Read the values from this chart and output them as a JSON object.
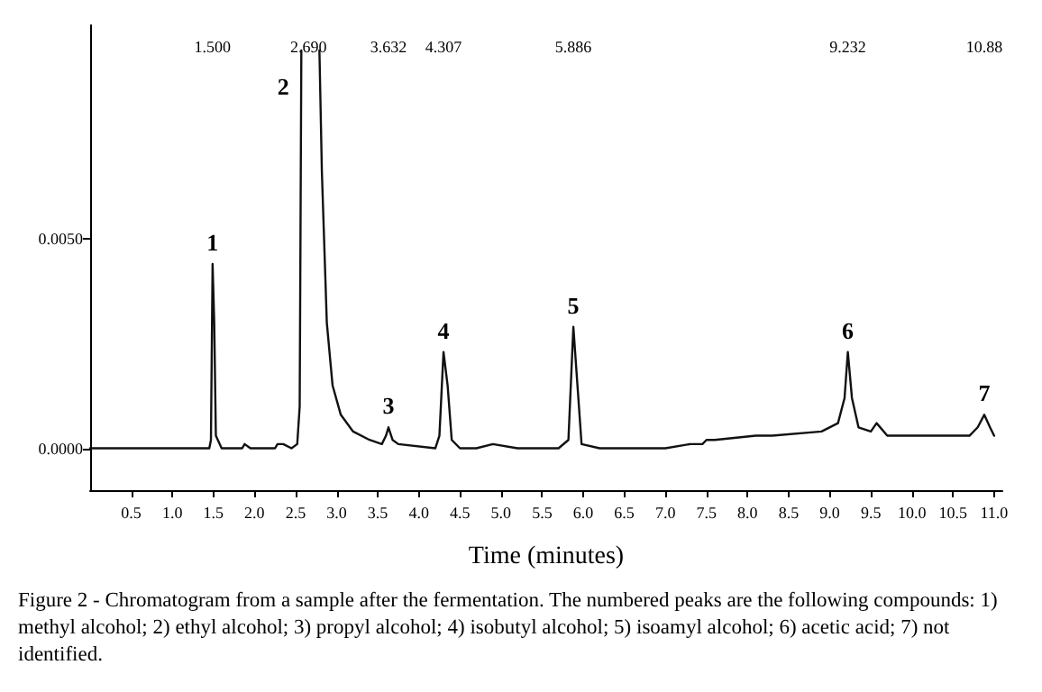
{
  "chart_data": {
    "type": "line",
    "xlabel": "Time (minutes)",
    "x": [
      0,
      0.5,
      1.0,
      1.45,
      1.47,
      1.49,
      1.51,
      1.53,
      1.6,
      1.85,
      1.88,
      1.95,
      2.25,
      2.28,
      2.35,
      2.45,
      2.52,
      2.55,
      2.57,
      2.58,
      2.75,
      2.79,
      2.82,
      2.88,
      2.95,
      3.05,
      3.2,
      3.4,
      3.55,
      3.6,
      3.63,
      3.68,
      3.75,
      4.2,
      4.25,
      4.3,
      4.35,
      4.4,
      4.5,
      4.7,
      4.9,
      5.2,
      5.7,
      5.82,
      5.88,
      5.93,
      5.98,
      6.2,
      7.0,
      7.3,
      7.45,
      7.5,
      7.6,
      8.1,
      8.3,
      8.9,
      9.1,
      9.18,
      9.22,
      9.27,
      9.35,
      9.5,
      9.57,
      9.7,
      10.7,
      10.8,
      10.88,
      10.95,
      11.0
    ],
    "series": [
      {
        "color": "#111111",
        "values": [
          0.0,
          0.0,
          0.0,
          0.0,
          0.0002,
          0.0044,
          0.003,
          0.0003,
          0.0,
          0.0,
          0.0001,
          0.0,
          0.0,
          0.0001,
          0.0001,
          0.0,
          0.0001,
          0.001,
          0.0095,
          null,
          null,
          0.0095,
          0.0066,
          0.003,
          0.0015,
          0.0008,
          0.0004,
          0.0002,
          0.0001,
          0.0003,
          0.0005,
          0.0002,
          0.0001,
          0.0,
          0.0003,
          0.0023,
          0.0015,
          0.0002,
          0.0,
          0.0,
          0.0001,
          0.0,
          0.0,
          0.0002,
          0.0029,
          0.0015,
          0.0001,
          0.0,
          0.0,
          0.0001,
          0.0001,
          0.0002,
          0.0002,
          0.0003,
          0.0003,
          0.0004,
          0.0006,
          0.0012,
          0.0023,
          0.0012,
          0.0005,
          0.0004,
          0.0006,
          0.0003,
          0.0003,
          0.0005,
          0.0008,
          0.0005,
          0.0003
        ]
      }
    ],
    "xlim": [
      0,
      11.1
    ],
    "ylim": [
      -0.001,
      0.0101
    ],
    "xticks": [
      {
        "value": 0.5,
        "label": "0.5"
      },
      {
        "value": 1,
        "label": "1.0"
      },
      {
        "value": 1.5,
        "label": "1.5"
      },
      {
        "value": 2,
        "label": "2.0"
      },
      {
        "value": 2.5,
        "label": "2.5"
      },
      {
        "value": 3,
        "label": "3.0"
      },
      {
        "value": 3.5,
        "label": "3.5"
      },
      {
        "value": 4,
        "label": "4.0"
      },
      {
        "value": 4.5,
        "label": "4.5"
      },
      {
        "value": 5,
        "label": "5.0"
      },
      {
        "value": 5.5,
        "label": "5.5"
      },
      {
        "value": 6,
        "label": "6.0"
      },
      {
        "value": 6.5,
        "label": "6.5"
      },
      {
        "value": 7,
        "label": "7.0"
      },
      {
        "value": 7.5,
        "label": "7.5"
      },
      {
        "value": 8,
        "label": "8.0"
      },
      {
        "value": 8.5,
        "label": "8.5"
      },
      {
        "value": 9,
        "label": "9.0"
      },
      {
        "value": 9.5,
        "label": "9.5"
      },
      {
        "value": 10,
        "label": "10.0"
      },
      {
        "value": 10.5,
        "label": "10.5"
      },
      {
        "value": 11,
        "label": "11.0"
      }
    ],
    "yticks": [
      {
        "value": 0,
        "label": "0.0000"
      },
      {
        "value": 0.005,
        "label": "0.0050"
      }
    ],
    "grid": false,
    "marker": "none",
    "line_style": "solid",
    "annotations": [
      "1.500",
      "2.690",
      "3.632",
      "4.307",
      "5.886",
      "9.232",
      "10.88",
      {
        "text": "1",
        "x": 1.49,
        "y": 0.0044
      },
      {
        "text": "2",
        "x": 2.57,
        "y": 0.0095
      },
      {
        "text": "3",
        "x": 3.63,
        "y": 0.0005
      },
      {
        "text": "4",
        "x": 4.3,
        "y": 0.0023
      },
      {
        "text": "5",
        "x": 5.88,
        "y": 0.0029
      },
      {
        "text": "6",
        "x": 9.22,
        "y": 0.0023
      },
      {
        "text": "7",
        "x": 10.88,
        "y": 0.0008
      },
      "Figure 2 - Chromatogram from a sample after the fermentation. The numbered peaks are the following compounds: 1) methyl alcohol; 2) ethyl alcohol; 3) propyl alcohol; 4) isobutyl alcohol; 5) isoamyl alcohol; 6) acetic acid; 7) not identified."
    ]
  }
}
